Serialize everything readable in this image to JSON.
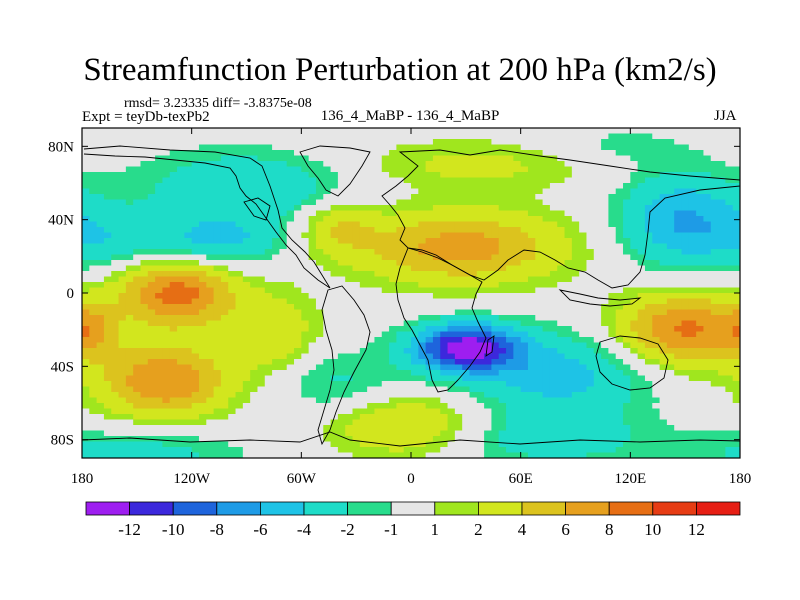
{
  "title": "Streamfunction Perturbation at 200 hPa (km2/s)",
  "stats": "rmsd= 3.23335 diff= -3.8375e-08",
  "experiment": "Expt = teyDb-texPb2",
  "comparison": "136_4_MaBP - 136_4_MaBP",
  "season": "JJA",
  "map": {
    "projection": "cylindrical-equidistant",
    "lon_range": [
      -180,
      180
    ],
    "lat_range": [
      -90,
      90
    ],
    "lat_ticks": [
      {
        "value": 80,
        "label": "80N"
      },
      {
        "value": 40,
        "label": "40N"
      },
      {
        "value": 0,
        "label": "0"
      },
      {
        "value": -40,
        "label": "40S"
      },
      {
        "value": -80,
        "label": "80S"
      }
    ],
    "lon_ticks": [
      {
        "value": -180,
        "label": "180"
      },
      {
        "value": -120,
        "label": "120W"
      },
      {
        "value": -60,
        "label": "60W"
      },
      {
        "value": 0,
        "label": "0"
      },
      {
        "value": 60,
        "label": "60E"
      },
      {
        "value": 120,
        "label": "120E"
      },
      {
        "value": 180,
        "label": "180"
      }
    ]
  },
  "colorbar": {
    "colors": [
      "#9e1ef0",
      "#3c28dc",
      "#1e64dc",
      "#1e9be6",
      "#1ec3e6",
      "#1edcc8",
      "#28dc8c",
      "#e6e6e6",
      "#a0e61e",
      "#d2e61e",
      "#dcc31e",
      "#e6a01e",
      "#e66e14",
      "#e63c14",
      "#e61e14"
    ],
    "labels": [
      "-12",
      "-10",
      "-8",
      "-6",
      "-4",
      "-2",
      "-1",
      "1",
      "2",
      "4",
      "6",
      "8",
      "10",
      "12"
    ]
  },
  "chart_data": {
    "type": "heatmap",
    "title": "Streamfunction Perturbation at 200 hPa (km2/s)",
    "xlim": [
      -180,
      180
    ],
    "ylim": [
      -90,
      90
    ],
    "levels": [
      -12,
      -10,
      -8,
      -6,
      -4,
      -2,
      -1,
      1,
      2,
      4,
      6,
      8,
      10,
      12
    ],
    "features": [
      {
        "lon": -128,
        "lat": 0,
        "value": 9,
        "sx": 22,
        "sy": 13
      },
      {
        "lon": -135,
        "lat": -48,
        "value": 8,
        "sx": 25,
        "sy": 14
      },
      {
        "lon": 27,
        "lat": 25,
        "value": 7,
        "sx": 40,
        "sy": 14
      },
      {
        "lon": 150,
        "lat": -20,
        "value": 8.5,
        "sx": 26,
        "sy": 14
      },
      {
        "lon": -40,
        "lat": 36,
        "value": 3.5,
        "sx": 15,
        "sy": 10
      },
      {
        "lon": -75,
        "lat": -22,
        "value": 3.5,
        "sx": 18,
        "sy": 16
      },
      {
        "lon": -5,
        "lat": -72,
        "value": 4.5,
        "sx": 30,
        "sy": 12
      },
      {
        "lon": 35,
        "lat": 70,
        "value": 2.5,
        "sx": 50,
        "sy": 10
      },
      {
        "lon": -175,
        "lat": -20,
        "value": 4,
        "sx": 10,
        "sy": 10
      },
      {
        "lon": 30,
        "lat": -30,
        "value": -13,
        "sx": 20,
        "sy": 9
      },
      {
        "lon": 80,
        "lat": -45,
        "value": -5,
        "sx": 35,
        "sy": 16
      },
      {
        "lon": 148,
        "lat": 40,
        "value": -6,
        "sx": 24,
        "sy": 18
      },
      {
        "lon": -90,
        "lat": 58,
        "value": -4,
        "sx": 40,
        "sy": 14
      },
      {
        "lon": -165,
        "lat": 30,
        "value": -3,
        "sx": 25,
        "sy": 12
      },
      {
        "lon": -105,
        "lat": 28,
        "value": -4.5,
        "sx": 25,
        "sy": 10
      },
      {
        "lon": 75,
        "lat": -80,
        "value": -3,
        "sx": 40,
        "sy": 10
      },
      {
        "lon": -150,
        "lat": -88,
        "value": -3,
        "sx": 40,
        "sy": 10
      },
      {
        "lon": -40,
        "lat": -50,
        "value": -2.5,
        "sx": 25,
        "sy": 14
      },
      {
        "lon": 110,
        "lat": 80,
        "value": -1.5,
        "sx": 30,
        "sy": 8
      }
    ]
  }
}
